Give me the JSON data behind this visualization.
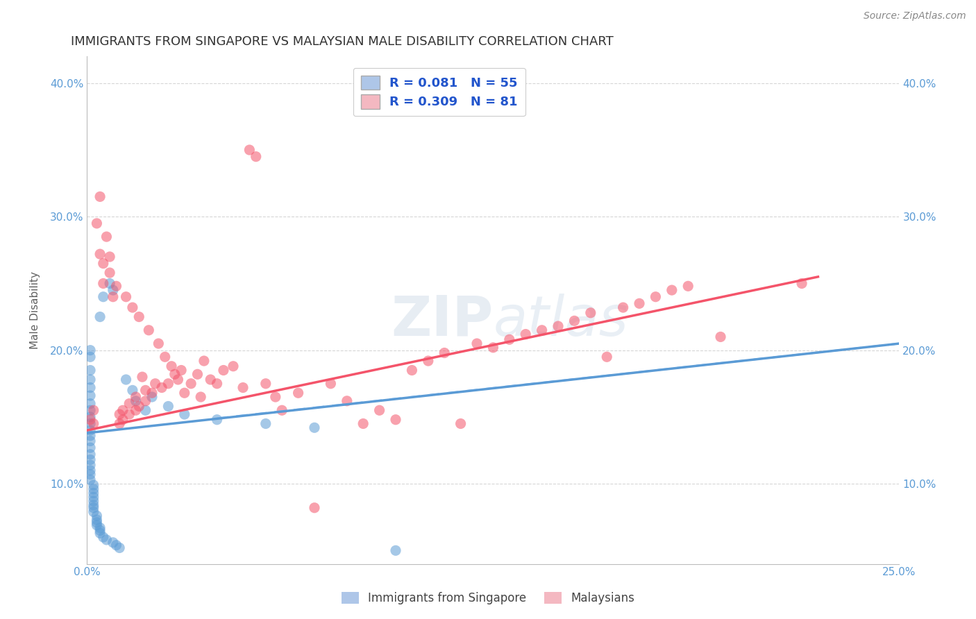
{
  "title": "IMMIGRANTS FROM SINGAPORE VS MALAYSIAN MALE DISABILITY CORRELATION CHART",
  "source": "Source: ZipAtlas.com",
  "ylabel": "Male Disability",
  "xlim": [
    0.0,
    0.25
  ],
  "ylim": [
    0.04,
    0.42
  ],
  "y_ticks": [
    0.1,
    0.2,
    0.3,
    0.4
  ],
  "y_tick_labels": [
    "10.0%",
    "20.0%",
    "30.0%",
    "40.0%"
  ],
  "x_tick_labels": [
    "0.0%",
    "",
    "",
    "",
    "",
    "25.0%"
  ],
  "sg_color": "#5b9bd5",
  "my_color": "#f4546a",
  "sg_line_color": "#7fbfff",
  "my_line_color": "#f4546a",
  "watermark": "ZIPatlas",
  "background_color": "#ffffff",
  "grid_color": "#cccccc",
  "title_color": "#404040",
  "axis_label_color": "#606060",
  "tick_label_color": "#5b9bd5",
  "sg_trend_x": [
    0.0,
    0.25
  ],
  "sg_trend_y": [
    0.138,
    0.205
  ],
  "my_trend_x": [
    0.0,
    0.225
  ],
  "my_trend_y": [
    0.14,
    0.255
  ],
  "sg_scatter": [
    [
      0.001,
      0.2
    ],
    [
      0.001,
      0.195
    ],
    [
      0.001,
      0.185
    ],
    [
      0.001,
      0.178
    ],
    [
      0.001,
      0.172
    ],
    [
      0.001,
      0.166
    ],
    [
      0.001,
      0.16
    ],
    [
      0.001,
      0.155
    ],
    [
      0.001,
      0.15
    ],
    [
      0.001,
      0.145
    ],
    [
      0.001,
      0.14
    ],
    [
      0.001,
      0.136
    ],
    [
      0.001,
      0.132
    ],
    [
      0.001,
      0.127
    ],
    [
      0.001,
      0.122
    ],
    [
      0.001,
      0.118
    ],
    [
      0.001,
      0.114
    ],
    [
      0.001,
      0.11
    ],
    [
      0.001,
      0.107
    ],
    [
      0.001,
      0.103
    ],
    [
      0.002,
      0.099
    ],
    [
      0.002,
      0.096
    ],
    [
      0.002,
      0.093
    ],
    [
      0.002,
      0.09
    ],
    [
      0.002,
      0.087
    ],
    [
      0.002,
      0.084
    ],
    [
      0.002,
      0.082
    ],
    [
      0.002,
      0.079
    ],
    [
      0.003,
      0.076
    ],
    [
      0.003,
      0.073
    ],
    [
      0.003,
      0.071
    ],
    [
      0.003,
      0.069
    ],
    [
      0.004,
      0.067
    ],
    [
      0.004,
      0.065
    ],
    [
      0.004,
      0.063
    ],
    [
      0.004,
      0.225
    ],
    [
      0.005,
      0.06
    ],
    [
      0.005,
      0.24
    ],
    [
      0.006,
      0.058
    ],
    [
      0.007,
      0.25
    ],
    [
      0.008,
      0.245
    ],
    [
      0.008,
      0.056
    ],
    [
      0.009,
      0.054
    ],
    [
      0.01,
      0.052
    ],
    [
      0.012,
      0.178
    ],
    [
      0.014,
      0.17
    ],
    [
      0.015,
      0.162
    ],
    [
      0.018,
      0.155
    ],
    [
      0.02,
      0.165
    ],
    [
      0.025,
      0.158
    ],
    [
      0.03,
      0.152
    ],
    [
      0.04,
      0.148
    ],
    [
      0.055,
      0.145
    ],
    [
      0.07,
      0.142
    ],
    [
      0.095,
      0.05
    ]
  ],
  "my_scatter": [
    [
      0.001,
      0.148
    ],
    [
      0.002,
      0.155
    ],
    [
      0.002,
      0.145
    ],
    [
      0.003,
      0.295
    ],
    [
      0.004,
      0.315
    ],
    [
      0.004,
      0.272
    ],
    [
      0.005,
      0.265
    ],
    [
      0.005,
      0.25
    ],
    [
      0.006,
      0.285
    ],
    [
      0.007,
      0.258
    ],
    [
      0.007,
      0.27
    ],
    [
      0.008,
      0.24
    ],
    [
      0.009,
      0.248
    ],
    [
      0.01,
      0.145
    ],
    [
      0.01,
      0.152
    ],
    [
      0.011,
      0.148
    ],
    [
      0.011,
      0.155
    ],
    [
      0.012,
      0.24
    ],
    [
      0.013,
      0.152
    ],
    [
      0.013,
      0.16
    ],
    [
      0.014,
      0.232
    ],
    [
      0.015,
      0.155
    ],
    [
      0.015,
      0.165
    ],
    [
      0.016,
      0.158
    ],
    [
      0.016,
      0.225
    ],
    [
      0.017,
      0.18
    ],
    [
      0.018,
      0.17
    ],
    [
      0.018,
      0.162
    ],
    [
      0.019,
      0.215
    ],
    [
      0.02,
      0.168
    ],
    [
      0.021,
      0.175
    ],
    [
      0.022,
      0.205
    ],
    [
      0.023,
      0.172
    ],
    [
      0.024,
      0.195
    ],
    [
      0.025,
      0.175
    ],
    [
      0.026,
      0.188
    ],
    [
      0.027,
      0.182
    ],
    [
      0.028,
      0.178
    ],
    [
      0.029,
      0.185
    ],
    [
      0.03,
      0.168
    ],
    [
      0.032,
      0.175
    ],
    [
      0.034,
      0.182
    ],
    [
      0.035,
      0.165
    ],
    [
      0.036,
      0.192
    ],
    [
      0.038,
      0.178
    ],
    [
      0.04,
      0.175
    ],
    [
      0.042,
      0.185
    ],
    [
      0.045,
      0.188
    ],
    [
      0.048,
      0.172
    ],
    [
      0.05,
      0.35
    ],
    [
      0.052,
      0.345
    ],
    [
      0.055,
      0.175
    ],
    [
      0.058,
      0.165
    ],
    [
      0.06,
      0.155
    ],
    [
      0.065,
      0.168
    ],
    [
      0.07,
      0.082
    ],
    [
      0.075,
      0.175
    ],
    [
      0.08,
      0.162
    ],
    [
      0.085,
      0.145
    ],
    [
      0.09,
      0.155
    ],
    [
      0.095,
      0.148
    ],
    [
      0.1,
      0.185
    ],
    [
      0.105,
      0.192
    ],
    [
      0.11,
      0.198
    ],
    [
      0.115,
      0.145
    ],
    [
      0.12,
      0.205
    ],
    [
      0.125,
      0.202
    ],
    [
      0.13,
      0.208
    ],
    [
      0.135,
      0.212
    ],
    [
      0.14,
      0.215
    ],
    [
      0.145,
      0.218
    ],
    [
      0.15,
      0.222
    ],
    [
      0.155,
      0.228
    ],
    [
      0.16,
      0.195
    ],
    [
      0.165,
      0.232
    ],
    [
      0.17,
      0.235
    ],
    [
      0.175,
      0.24
    ],
    [
      0.18,
      0.245
    ],
    [
      0.185,
      0.248
    ],
    [
      0.195,
      0.21
    ],
    [
      0.22,
      0.25
    ]
  ]
}
